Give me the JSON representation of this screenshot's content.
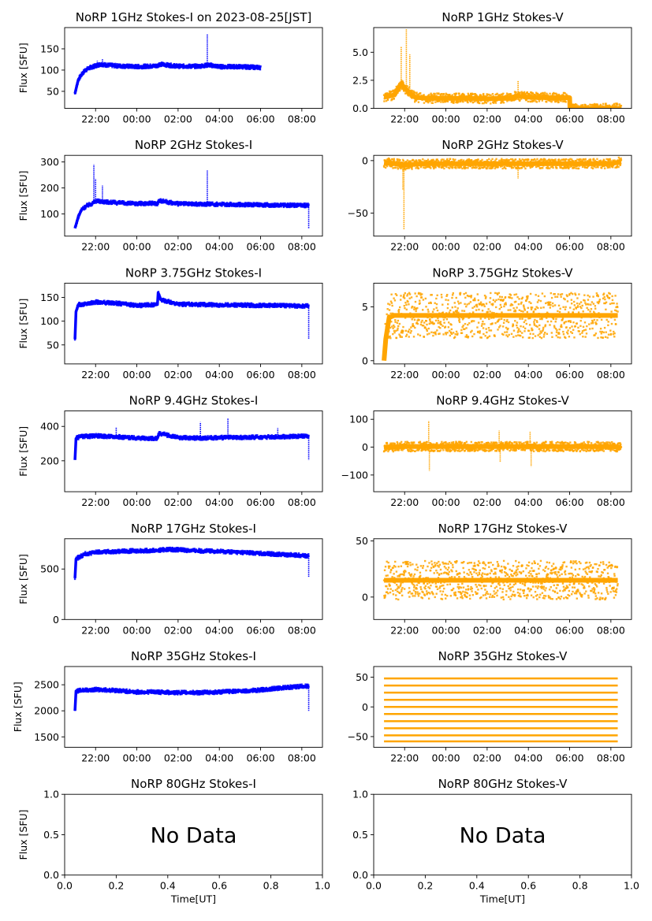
{
  "colors": {
    "stokes_i": "#0000ff",
    "stokes_v": "#ffa500",
    "axes": "#000000",
    "background": "#ffffff"
  },
  "chart_data": [
    {
      "type": "scatter",
      "title": "NoRP 1GHz Stokes-I on 2023-08-25[JST]",
      "ylabel": "Flux [SFU]",
      "xlabel": "",
      "color": "#0000ff",
      "xlim": [
        "20:30",
        "09:00"
      ],
      "ylim": [
        10,
        200
      ],
      "no_data": false,
      "xticks": [
        "22:00",
        "00:00",
        "02:00",
        "04:00",
        "06:00",
        "08:00"
      ],
      "yticks": [
        {
          "value": 50,
          "label": "50"
        },
        {
          "value": 100,
          "label": "100"
        },
        {
          "value": 150,
          "label": "150"
        }
      ],
      "points": [
        [
          "21:00",
          45
        ],
        [
          "21:05",
          62
        ],
        [
          "21:10",
          78
        ],
        [
          "21:20",
          90
        ],
        [
          "21:30",
          100
        ],
        [
          "21:45",
          106
        ],
        [
          "22:00",
          110
        ],
        [
          "22:15",
          114
        ],
        [
          "22:30",
          112
        ],
        [
          "23:00",
          110
        ],
        [
          "00:00",
          108
        ],
        [
          "01:00",
          110
        ],
        [
          "01:05",
          114
        ],
        [
          "02:00",
          109
        ],
        [
          "03:00",
          109
        ],
        [
          "03:30",
          112
        ],
        [
          "04:00",
          108
        ],
        [
          "05:00",
          108
        ],
        [
          "06:00",
          106
        ]
      ],
      "spikes": [
        [
          "22:05",
          122
        ],
        [
          "22:20",
          126
        ],
        [
          "03:25",
          185
        ]
      ]
    },
    {
      "type": "scatter",
      "title": "NoRP 1GHz Stokes-V",
      "ylabel": "",
      "xlabel": "",
      "color": "#ffa500",
      "xlim": [
        "20:30",
        "09:00"
      ],
      "ylim": [
        0,
        7.2
      ],
      "no_data": false,
      "xticks": [
        "22:00",
        "00:00",
        "02:00",
        "04:00",
        "06:00",
        "08:00"
      ],
      "yticks": [
        {
          "value": 0,
          "label": "0.0"
        },
        {
          "value": 2.5,
          "label": "2.5"
        },
        {
          "value": 5,
          "label": "5.0"
        }
      ],
      "points": [
        [
          "21:00",
          1.0
        ],
        [
          "21:30",
          1.2
        ],
        [
          "21:50",
          2.2
        ],
        [
          "22:00",
          1.8
        ],
        [
          "22:15",
          1.4
        ],
        [
          "22:30",
          1.0
        ],
        [
          "23:00",
          0.9
        ],
        [
          "00:00",
          0.9
        ],
        [
          "01:00",
          0.9
        ],
        [
          "02:00",
          0.85
        ],
        [
          "03:00",
          0.9
        ],
        [
          "03:30",
          1.1
        ],
        [
          "04:00",
          1.0
        ],
        [
          "05:00",
          0.95
        ],
        [
          "06:00",
          0.95
        ],
        [
          "06:01",
          0.0
        ],
        [
          "07:00",
          0.0
        ],
        [
          "08:00",
          0.0
        ],
        [
          "08:30",
          0.0
        ]
      ],
      "spikes": [
        [
          "21:50",
          5.5
        ],
        [
          "22:05",
          7.1
        ],
        [
          "22:15",
          4.8
        ],
        [
          "03:30",
          2.5
        ]
      ]
    },
    {
      "type": "scatter",
      "title": "NoRP 2GHz Stokes-I",
      "ylabel": "Flux [SFU]",
      "xlabel": "",
      "color": "#0000ff",
      "xlim": [
        "20:30",
        "09:00"
      ],
      "ylim": [
        15,
        325
      ],
      "no_data": false,
      "xticks": [
        "22:00",
        "00:00",
        "02:00",
        "04:00",
        "06:00",
        "08:00"
      ],
      "yticks": [
        {
          "value": 100,
          "label": "100"
        },
        {
          "value": 200,
          "label": "200"
        },
        {
          "value": 300,
          "label": "300"
        }
      ],
      "points": [
        [
          "21:00",
          45
        ],
        [
          "21:10",
          90
        ],
        [
          "21:20",
          118
        ],
        [
          "21:35",
          132
        ],
        [
          "21:50",
          140
        ],
        [
          "22:00",
          150
        ],
        [
          "22:20",
          148
        ],
        [
          "23:00",
          143
        ],
        [
          "00:00",
          140
        ],
        [
          "01:00",
          141
        ],
        [
          "01:05",
          152
        ],
        [
          "02:00",
          139
        ],
        [
          "03:00",
          138
        ],
        [
          "04:00",
          137
        ],
        [
          "05:00",
          136
        ],
        [
          "06:00",
          135
        ],
        [
          "07:00",
          134
        ],
        [
          "08:00",
          133
        ],
        [
          "08:20",
          133
        ]
      ],
      "spikes": [
        [
          "21:55",
          290
        ],
        [
          "22:00",
          235
        ],
        [
          "22:20",
          210
        ],
        [
          "03:25",
          268
        ],
        [
          "08:20",
          45
        ]
      ]
    },
    {
      "type": "scatter",
      "title": "NoRP 2GHz Stokes-V",
      "ylabel": "",
      "xlabel": "",
      "color": "#ffa500",
      "xlim": [
        "20:30",
        "09:00"
      ],
      "ylim": [
        -72,
        5
      ],
      "no_data": false,
      "xticks": [
        "22:00",
        "00:00",
        "02:00",
        "04:00",
        "06:00",
        "08:00"
      ],
      "yticks": [
        {
          "value": -50,
          "label": "−50"
        },
        {
          "value": 0,
          "label": "0"
        }
      ],
      "points": [
        [
          "21:00",
          -2
        ],
        [
          "21:30",
          -3
        ],
        [
          "22:00",
          -4
        ],
        [
          "23:00",
          -3
        ],
        [
          "00:00",
          -3
        ],
        [
          "01:00",
          -3
        ],
        [
          "02:00",
          -3
        ],
        [
          "03:00",
          -3
        ],
        [
          "04:00",
          -3
        ],
        [
          "05:00",
          -3
        ],
        [
          "06:00",
          -3
        ],
        [
          "07:00",
          -3
        ],
        [
          "08:00",
          -3
        ],
        [
          "08:30",
          -1
        ]
      ],
      "spikes": [
        [
          "21:55",
          -28
        ],
        [
          "21:58",
          -66
        ],
        [
          "03:30",
          -17
        ]
      ]
    },
    {
      "type": "scatter",
      "title": "NoRP 3.75GHz Stokes-I",
      "ylabel": "Flux [SFU]",
      "xlabel": "",
      "color": "#0000ff",
      "xlim": [
        "20:30",
        "09:00"
      ],
      "ylim": [
        10,
        180
      ],
      "no_data": false,
      "xticks": [
        "22:00",
        "00:00",
        "02:00",
        "04:00",
        "06:00",
        "08:00"
      ],
      "yticks": [
        {
          "value": 50,
          "label": "50"
        },
        {
          "value": 100,
          "label": "100"
        },
        {
          "value": 150,
          "label": "150"
        }
      ],
      "points": [
        [
          "21:00",
          62
        ],
        [
          "21:03",
          120
        ],
        [
          "21:10",
          135
        ],
        [
          "21:30",
          136
        ],
        [
          "22:00",
          140
        ],
        [
          "23:00",
          138
        ],
        [
          "00:00",
          133
        ],
        [
          "01:00",
          135
        ],
        [
          "01:02",
          160
        ],
        [
          "01:10",
          145
        ],
        [
          "02:00",
          136
        ],
        [
          "03:00",
          135
        ],
        [
          "04:00",
          134
        ],
        [
          "05:00",
          134
        ],
        [
          "06:00",
          133
        ],
        [
          "07:00",
          133
        ],
        [
          "08:00",
          132
        ],
        [
          "08:20",
          132
        ]
      ],
      "spikes": [
        [
          "08:20",
          62
        ]
      ]
    },
    {
      "type": "scatter",
      "title": "NoRP 3.75GHz Stokes-V",
      "ylabel": "",
      "xlabel": "",
      "color": "#ffa500",
      "xlim": [
        "20:30",
        "09:00"
      ],
      "ylim": [
        -0.3,
        7.2
      ],
      "no_data": false,
      "xticks": [
        "22:00",
        "00:00",
        "02:00",
        "04:00",
        "06:00",
        "08:00"
      ],
      "yticks": [
        {
          "value": 0,
          "label": "0"
        },
        {
          "value": 5,
          "label": "5"
        }
      ],
      "points": [
        [
          "21:00",
          0.0
        ],
        [
          "21:05",
          2.0
        ],
        [
          "21:15",
          4.0
        ],
        [
          "21:30",
          4.2
        ],
        [
          "22:00",
          4.2
        ],
        [
          "00:00",
          4.2
        ],
        [
          "02:00",
          4.2
        ],
        [
          "04:00",
          4.2
        ],
        [
          "06:00",
          4.2
        ],
        [
          "08:00",
          4.2
        ],
        [
          "08:20",
          4.2
        ]
      ],
      "spikes": []
    },
    {
      "type": "scatter",
      "title": "NoRP 9.4GHz Stokes-I",
      "ylabel": "Flux [SFU]",
      "xlabel": "",
      "color": "#0000ff",
      "xlim": [
        "20:30",
        "09:00"
      ],
      "ylim": [
        20,
        490
      ],
      "no_data": false,
      "xticks": [
        "22:00",
        "00:00",
        "02:00",
        "04:00",
        "06:00",
        "08:00"
      ],
      "yticks": [
        {
          "value": 200,
          "label": "200"
        },
        {
          "value": 400,
          "label": "400"
        }
      ],
      "points": [
        [
          "21:00",
          205
        ],
        [
          "21:03",
          330
        ],
        [
          "21:15",
          340
        ],
        [
          "22:00",
          345
        ],
        [
          "23:00",
          340
        ],
        [
          "00:00",
          332
        ],
        [
          "01:00",
          330
        ],
        [
          "01:05",
          360
        ],
        [
          "02:00",
          335
        ],
        [
          "03:00",
          332
        ],
        [
          "04:00",
          335
        ],
        [
          "05:00",
          335
        ],
        [
          "06:00",
          338
        ],
        [
          "07:00",
          340
        ],
        [
          "08:00",
          342
        ],
        [
          "08:20",
          345
        ]
      ],
      "spikes": [
        [
          "23:00",
          395
        ],
        [
          "03:05",
          425
        ],
        [
          "04:25",
          445
        ],
        [
          "06:50",
          390
        ],
        [
          "08:20",
          205
        ]
      ]
    },
    {
      "type": "scatter",
      "title": "NoRP 9.4GHz Stokes-V",
      "ylabel": "",
      "xlabel": "",
      "color": "#ffa500",
      "xlim": [
        "20:30",
        "09:00"
      ],
      "ylim": [
        -160,
        130
      ],
      "no_data": false,
      "xticks": [
        "22:00",
        "00:00",
        "02:00",
        "04:00",
        "06:00",
        "08:00"
      ],
      "yticks": [
        {
          "value": -100,
          "label": "−100"
        },
        {
          "value": 0,
          "label": "0"
        },
        {
          "value": 100,
          "label": "100"
        }
      ],
      "points": [
        [
          "21:00",
          0
        ],
        [
          "22:00",
          2
        ],
        [
          "00:00",
          2
        ],
        [
          "02:00",
          2
        ],
        [
          "04:00",
          2
        ],
        [
          "06:00",
          2
        ],
        [
          "08:00",
          2
        ],
        [
          "08:30",
          0
        ]
      ],
      "spikes": [
        [
          "23:10",
          95
        ],
        [
          "23:12",
          -85
        ],
        [
          "02:35",
          60
        ],
        [
          "02:38",
          -55
        ],
        [
          "04:05",
          55
        ],
        [
          "04:08",
          -70
        ]
      ]
    },
    {
      "type": "scatter",
      "title": "NoRP 17GHz Stokes-I",
      "ylabel": "Flux [SFU]",
      "xlabel": "",
      "color": "#0000ff",
      "xlim": [
        "20:30",
        "09:00"
      ],
      "ylim": [
        0,
        800
      ],
      "no_data": false,
      "xticks": [
        "22:00",
        "00:00",
        "02:00",
        "04:00",
        "06:00",
        "08:00"
      ],
      "yticks": [
        {
          "value": 0,
          "label": "0"
        },
        {
          "value": 500,
          "label": "500"
        }
      ],
      "points": [
        [
          "21:00",
          410
        ],
        [
          "21:03",
          600
        ],
        [
          "21:30",
          650
        ],
        [
          "22:00",
          665
        ],
        [
          "23:00",
          675
        ],
        [
          "00:00",
          680
        ],
        [
          "01:00",
          685
        ],
        [
          "01:30",
          695
        ],
        [
          "02:00",
          690
        ],
        [
          "03:00",
          680
        ],
        [
          "04:00",
          675
        ],
        [
          "05:00",
          665
        ],
        [
          "06:00",
          655
        ],
        [
          "07:00",
          645
        ],
        [
          "08:00",
          635
        ],
        [
          "08:20",
          630
        ]
      ],
      "spikes": [
        [
          "08:20",
          420
        ]
      ]
    },
    {
      "type": "scatter",
      "title": "NoRP 17GHz Stokes-V",
      "ylabel": "",
      "xlabel": "",
      "color": "#ffa500",
      "xlim": [
        "20:30",
        "09:00"
      ],
      "ylim": [
        -20,
        52
      ],
      "no_data": false,
      "xticks": [
        "22:00",
        "00:00",
        "02:00",
        "04:00",
        "06:00",
        "08:00"
      ],
      "yticks": [
        {
          "value": 0,
          "label": "0"
        },
        {
          "value": 50,
          "label": "50"
        }
      ],
      "points": [
        [
          "21:00",
          15
        ],
        [
          "22:00",
          15
        ],
        [
          "00:00",
          15
        ],
        [
          "02:00",
          15
        ],
        [
          "04:00",
          15
        ],
        [
          "06:00",
          15
        ],
        [
          "08:00",
          15
        ],
        [
          "08:20",
          15
        ]
      ],
      "spikes": []
    },
    {
      "type": "scatter",
      "title": "NoRP 35GHz Stokes-I",
      "ylabel": "Flux [SFU]",
      "xlabel": "",
      "color": "#0000ff",
      "xlim": [
        "20:30",
        "09:00"
      ],
      "ylim": [
        1300,
        2850
      ],
      "no_data": false,
      "xticks": [
        "22:00",
        "00:00",
        "02:00",
        "04:00",
        "06:00",
        "08:00"
      ],
      "yticks": [
        {
          "value": 1500,
          "label": "1500"
        },
        {
          "value": 2000,
          "label": "2000"
        },
        {
          "value": 2500,
          "label": "2500"
        }
      ],
      "points": [
        [
          "21:00",
          2000
        ],
        [
          "21:03",
          2380
        ],
        [
          "21:30",
          2400
        ],
        [
          "22:00",
          2410
        ],
        [
          "23:00",
          2390
        ],
        [
          "00:00",
          2360
        ],
        [
          "01:00",
          2360
        ],
        [
          "02:00",
          2350
        ],
        [
          "03:00",
          2350
        ],
        [
          "04:00",
          2360
        ],
        [
          "05:00",
          2380
        ],
        [
          "06:00",
          2400
        ],
        [
          "07:00",
          2440
        ],
        [
          "08:00",
          2470
        ],
        [
          "08:20",
          2470
        ]
      ],
      "spikes": [
        [
          "08:20",
          2000
        ]
      ]
    },
    {
      "type": "scatter",
      "title": "NoRP 35GHz Stokes-V",
      "ylabel": "",
      "xlabel": "",
      "color": "#ffa500",
      "xlim": [
        "20:30",
        "09:00"
      ],
      "ylim": [
        -68,
        68
      ],
      "no_data": false,
      "xticks": [
        "22:00",
        "00:00",
        "02:00",
        "04:00",
        "06:00",
        "08:00"
      ],
      "yticks": [
        {
          "value": -50,
          "label": "−50"
        },
        {
          "value": 0,
          "label": "0"
        },
        {
          "value": 50,
          "label": "50"
        }
      ],
      "levels": [
        48,
        36,
        24,
        12,
        0,
        -12,
        -24,
        -36,
        -48,
        -58
      ],
      "points": [],
      "spikes": []
    },
    {
      "type": "scatter",
      "title": "NoRP 80GHz Stokes-I",
      "ylabel": "Flux [SFU]",
      "xlabel": "Time[UT]",
      "color": "#0000ff",
      "xlim": [
        0,
        1
      ],
      "ylim": [
        0,
        1
      ],
      "no_data": true,
      "annotation": "No Data",
      "xticks": [
        "0.0",
        "0.2",
        "0.4",
        "0.6",
        "0.8",
        "1.0"
      ],
      "yticks": [
        {
          "value": 0,
          "label": "0.0"
        },
        {
          "value": 0.5,
          "label": "0.5"
        },
        {
          "value": 1,
          "label": "1.0"
        }
      ],
      "points": [],
      "spikes": []
    },
    {
      "type": "scatter",
      "title": "NoRP 80GHz Stokes-V",
      "ylabel": "",
      "xlabel": "Time[UT]",
      "color": "#ffa500",
      "xlim": [
        0,
        1
      ],
      "ylim": [
        0,
        1
      ],
      "no_data": true,
      "annotation": "No Data",
      "xticks": [
        "0.0",
        "0.2",
        "0.4",
        "0.6",
        "0.8",
        "1.0"
      ],
      "yticks": [
        {
          "value": 0,
          "label": "0.0"
        },
        {
          "value": 0.5,
          "label": "0.5"
        },
        {
          "value": 1,
          "label": "1.0"
        }
      ],
      "points": [],
      "spikes": []
    }
  ]
}
